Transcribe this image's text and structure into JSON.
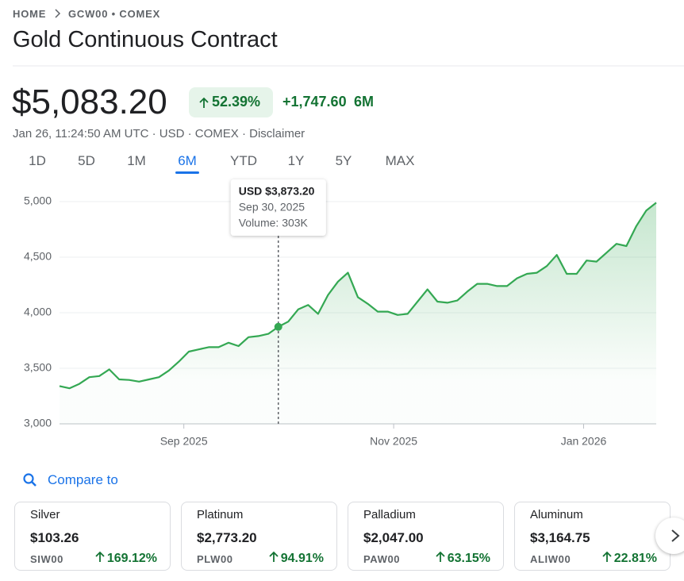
{
  "breadcrumb": {
    "home": "HOME",
    "symbol": "GCW00 • COMEX"
  },
  "title": "Gold Continuous Contract",
  "quote": {
    "price": "$5,083.20",
    "change_percent": "52.39%",
    "change": "+1,747.60",
    "period": "6M",
    "meta": "Jan 26, 11:24:50 AM UTC · USD · COMEX · Disclaimer"
  },
  "tabs": [
    "1D",
    "5D",
    "1M",
    "6M",
    "YTD",
    "1Y",
    "5Y",
    "MAX"
  ],
  "selected_tab": "6M",
  "chart_data": {
    "type": "line",
    "color": "#34a853",
    "grid": true,
    "x": [
      0,
      1,
      2,
      3,
      4,
      5,
      6,
      7,
      8,
      9,
      10,
      11,
      12,
      13,
      14,
      15,
      16,
      17,
      18,
      19,
      20,
      21,
      22,
      23,
      24,
      25,
      26,
      27,
      28,
      29,
      30,
      31,
      32,
      33,
      34,
      35,
      36,
      37,
      38,
      39,
      40,
      41,
      42,
      43,
      44,
      45,
      46,
      47,
      48,
      49,
      50,
      51,
      52,
      53,
      54,
      55,
      56,
      57,
      58,
      59,
      60
    ],
    "values": [
      3340,
      3320,
      3360,
      3420,
      3430,
      3490,
      3400,
      3395,
      3380,
      3400,
      3420,
      3480,
      3560,
      3650,
      3670,
      3690,
      3690,
      3730,
      3700,
      3780,
      3790,
      3810,
      3873.2,
      3920,
      4030,
      4070,
      3990,
      4160,
      4280,
      4360,
      4140,
      4080,
      4010,
      4010,
      3980,
      3990,
      4100,
      4210,
      4100,
      4090,
      4110,
      4190,
      4260,
      4260,
      4240,
      4240,
      4310,
      4350,
      4360,
      4420,
      4520,
      4350,
      4350,
      4470,
      4460,
      4540,
      4620,
      4600,
      4780,
      4920,
      4990
    ],
    "xlim": [
      0,
      60
    ],
    "xticks": [
      {
        "value": 12.5,
        "label": "Sep 2025"
      },
      {
        "value": 33.6,
        "label": "Nov 2025"
      },
      {
        "value": 52.7,
        "label": "Jan 2026"
      }
    ],
    "ylim": [
      3000,
      5000
    ],
    "yticks": [
      {
        "value": 3000,
        "label": "3,000"
      },
      {
        "value": 3500,
        "label": "3,500"
      },
      {
        "value": 4000,
        "label": "4,000"
      },
      {
        "value": 4500,
        "label": "4,500"
      },
      {
        "value": 5000,
        "label": "5,000"
      }
    ],
    "tooltip": {
      "x": 22,
      "price": "USD $3,873.20",
      "date": "Sep 30, 2025",
      "volume": "Volume: 303K"
    }
  },
  "compare": {
    "label": "Compare to",
    "items": [
      {
        "name": "Silver",
        "price": "$103.26",
        "symbol": "SIW00",
        "change": "169.12%"
      },
      {
        "name": "Platinum",
        "price": "$2,773.20",
        "symbol": "PLW00",
        "change": "94.91%"
      },
      {
        "name": "Palladium",
        "price": "$2,047.00",
        "symbol": "PAW00",
        "change": "63.15%"
      },
      {
        "name": "Aluminum",
        "price": "$3,164.75",
        "symbol": "ALIW00",
        "change": "22.81%"
      }
    ]
  }
}
